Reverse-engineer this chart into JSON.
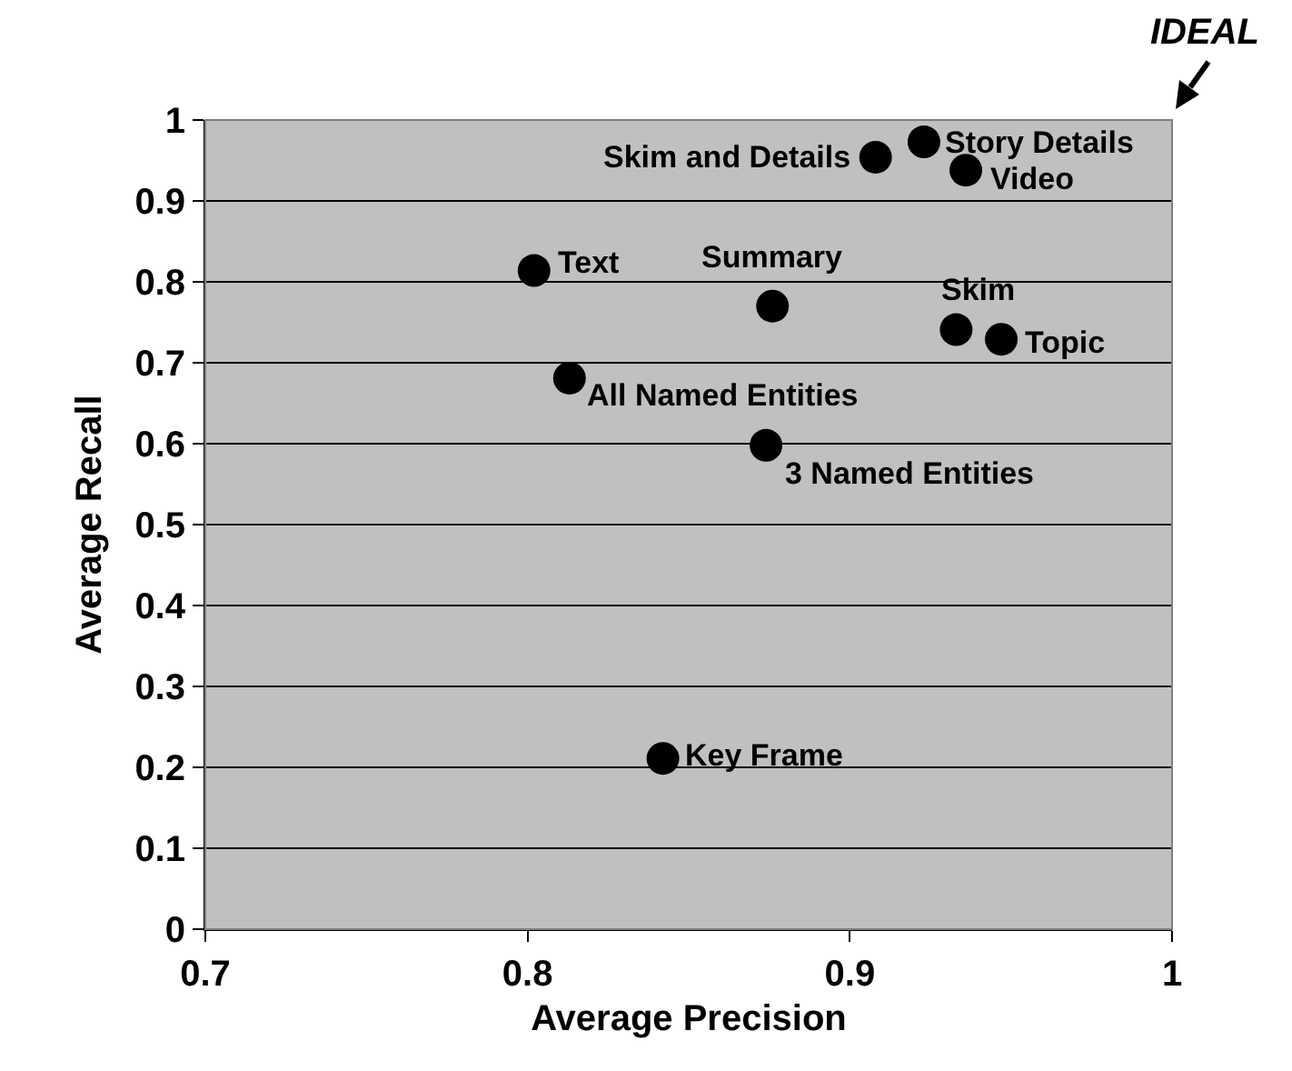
{
  "chart_data": {
    "type": "scatter",
    "xlabel": "Average Precision",
    "ylabel": "Average Recall",
    "xlim": [
      0.7,
      1
    ],
    "xticks": [
      0.7,
      0.8,
      0.9,
      1
    ],
    "ylim": [
      0,
      1
    ],
    "yticks": [
      0,
      0.1,
      0.2,
      0.3,
      0.4,
      0.5,
      0.6,
      0.7,
      0.8,
      0.9,
      1
    ],
    "grid": "y",
    "legend": false,
    "marker": "circle",
    "series": [
      {
        "name": "Skim and Details",
        "color": "#000000",
        "x": [
          0.908
        ],
        "values": [
          0.954
        ]
      },
      {
        "name": "Story Details",
        "color": "#000000",
        "x": [
          0.923
        ],
        "values": [
          0.973
        ]
      },
      {
        "name": "Video",
        "color": "#000000",
        "x": [
          0.936
        ],
        "values": [
          0.938
        ]
      },
      {
        "name": "Text",
        "color": "#000000",
        "x": [
          0.802
        ],
        "values": [
          0.814
        ]
      },
      {
        "name": "Summary",
        "color": "#000000",
        "x": [
          0.876
        ],
        "values": [
          0.77
        ]
      },
      {
        "name": "Skim",
        "color": "#000000",
        "x": [
          0.933
        ],
        "values": [
          0.741
        ]
      },
      {
        "name": "Topic",
        "color": "#000000",
        "x": [
          0.947
        ],
        "values": [
          0.729
        ]
      },
      {
        "name": "All Named Entities",
        "color": "#000000",
        "x": [
          0.813
        ],
        "values": [
          0.681
        ]
      },
      {
        "name": "3 Named Entities",
        "color": "#000000",
        "x": [
          0.874
        ],
        "values": [
          0.598
        ]
      },
      {
        "name": "Key Frame",
        "color": "#000000",
        "x": [
          0.842
        ],
        "values": [
          0.211
        ]
      }
    ],
    "annotations": [
      "IDEAL"
    ]
  }
}
